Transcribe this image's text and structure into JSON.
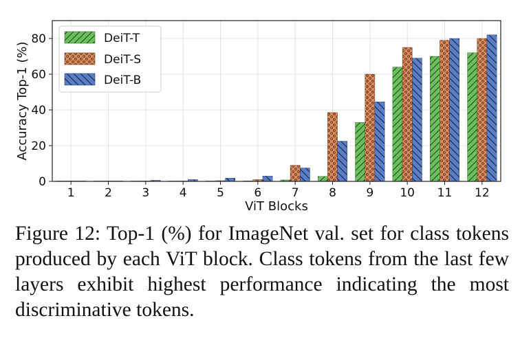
{
  "chart_data": {
    "type": "bar",
    "xlabel": "ViT Blocks",
    "ylabel": "Accuracy Top-1 (%)",
    "categories": [
      "1",
      "2",
      "3",
      "4",
      "5",
      "6",
      "7",
      "8",
      "9",
      "10",
      "11",
      "12"
    ],
    "ylim": [
      0,
      90
    ],
    "yticks": [
      0,
      20,
      40,
      60,
      80
    ],
    "grid": true,
    "legend_position": "top-left",
    "series": [
      {
        "name": "DeiT-T",
        "color": "#6abf5e",
        "hatch": "diagonal-forward",
        "values": [
          0.1,
          0.1,
          0.1,
          0.1,
          0.2,
          0.3,
          0.8,
          2.8,
          33,
          64,
          70,
          72
        ]
      },
      {
        "name": "DeiT-S",
        "color": "#d98c5f",
        "hatch": "dots",
        "values": [
          0.1,
          0.1,
          0.1,
          0.2,
          0.4,
          1.0,
          9.0,
          38.5,
          60,
          75,
          79,
          80
        ]
      },
      {
        "name": "DeiT-B",
        "color": "#5b7fc7",
        "hatch": "diagonal-back",
        "values": [
          0.1,
          0.2,
          0.6,
          1.0,
          1.8,
          3.0,
          7.5,
          22.5,
          44.5,
          69,
          80,
          82
        ]
      }
    ]
  },
  "caption": "Figure 12: Top-1 (%) for ImageNet val. set for class tokens produced by each ViT block. Class tokens from the last few layers exhibit highest performance indicating the most discriminative tokens."
}
